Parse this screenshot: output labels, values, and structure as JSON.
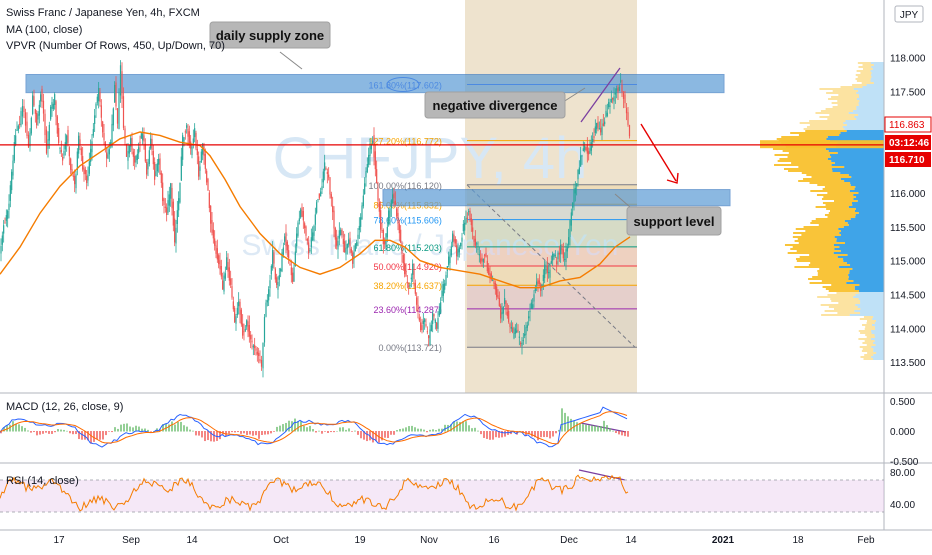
{
  "header": {
    "title": "Swiss Franc / Japanese Yen, 4h, FXCM",
    "indicator_ma": "MA (100, close)",
    "indicator_vpvr": "VPVR (Number Of Rows, 450, Up/Down, 70)",
    "watermark_symbol": "CHFJPY, 4h",
    "watermark_name": "Swiss Franc / Japanese Yen",
    "currency_badge": "JPY"
  },
  "chart_data": [
    {
      "type": "line",
      "name": "price-pane",
      "price_axis": {
        "range": [
          113.0,
          118.2
        ],
        "ticks": [
          "113.000",
          "113.500",
          "114.000",
          "114.500",
          "115.000",
          "115.500",
          "116.000",
          "116.500",
          "117.000",
          "117.500",
          "118.000"
        ]
      },
      "time_axis": {
        "ticks": [
          "17",
          "Sep",
          "14",
          "Oct",
          "19",
          "Nov",
          "16",
          "Dec",
          "14",
          "2021",
          "18",
          "Feb"
        ]
      },
      "price_path": [
        [
          0,
          115.1
        ],
        [
          4,
          115.55
        ],
        [
          8,
          115.7
        ],
        [
          12,
          116.3
        ],
        [
          16,
          116.9
        ],
        [
          20,
          117.05
        ],
        [
          23,
          117.3
        ],
        [
          26,
          117.0
        ],
        [
          29,
          116.7
        ],
        [
          33,
          117.4
        ],
        [
          37,
          117.05
        ],
        [
          41,
          117.5
        ],
        [
          44,
          117.2
        ],
        [
          47,
          116.6
        ],
        [
          51,
          117.25
        ],
        [
          55,
          117.4
        ],
        [
          59,
          116.7
        ],
        [
          63,
          116.5
        ],
        [
          67,
          116.9
        ],
        [
          71,
          116.4
        ],
        [
          75,
          116.1
        ],
        [
          79,
          116.8
        ],
        [
          83,
          116.4
        ],
        [
          87,
          116.2
        ],
        [
          91,
          116.6
        ],
        [
          95,
          117.2
        ],
        [
          99,
          117.5
        ],
        [
          103,
          116.9
        ],
        [
          107,
          116.5
        ],
        [
          111,
          116.7
        ],
        [
          115,
          117.6
        ],
        [
          118,
          117.0
        ],
        [
          121,
          117.85
        ],
        [
          124,
          117.0
        ],
        [
          127,
          116.5
        ],
        [
          131,
          116.8
        ],
        [
          135,
          116.4
        ],
        [
          139,
          116.7
        ],
        [
          143,
          116.9
        ],
        [
          147,
          116.3
        ],
        [
          151,
          116.8
        ],
        [
          155,
          116.2
        ],
        [
          159,
          116.5
        ],
        [
          163,
          115.9
        ],
        [
          167,
          115.7
        ],
        [
          171,
          116.1
        ],
        [
          175,
          115.3
        ],
        [
          179,
          115.9
        ],
        [
          183,
          116.8
        ],
        [
          187,
          117.0
        ],
        [
          191,
          116.6
        ],
        [
          195,
          116.9
        ],
        [
          199,
          116.3
        ],
        [
          203,
          116.7
        ],
        [
          207,
          116.2
        ],
        [
          211,
          115.6
        ],
        [
          215,
          115.2
        ],
        [
          219,
          115.0
        ],
        [
          223,
          114.6
        ],
        [
          227,
          115.0
        ],
        [
          231,
          114.6
        ],
        [
          235,
          114.1
        ],
        [
          239,
          114.4
        ],
        [
          243,
          113.9
        ],
        [
          247,
          114.1
        ],
        [
          251,
          113.8
        ],
        [
          255,
          113.7
        ],
        [
          259,
          113.6
        ],
        [
          262,
          113.4
        ],
        [
          265,
          114.2
        ],
        [
          269,
          114.6
        ],
        [
          273,
          115.1
        ],
        [
          277,
          114.6
        ],
        [
          281,
          114.9
        ],
        [
          285,
          115.4
        ],
        [
          289,
          115.0
        ],
        [
          293,
          114.7
        ],
        [
          297,
          115.4
        ],
        [
          301,
          115.8
        ],
        [
          305,
          115.5
        ],
        [
          309,
          115.1
        ],
        [
          313,
          115.4
        ],
        [
          317,
          115.9
        ],
        [
          321,
          116.0
        ],
        [
          325,
          116.4
        ],
        [
          329,
          116.2
        ],
        [
          333,
          115.7
        ],
        [
          337,
          115.2
        ],
        [
          341,
          115.5
        ],
        [
          345,
          115.1
        ],
        [
          349,
          115.3
        ],
        [
          353,
          115.0
        ],
        [
          357,
          115.3
        ],
        [
          361,
          115.6
        ],
        [
          365,
          116.2
        ],
        [
          369,
          116.6
        ],
        [
          373,
          116.8
        ],
        [
          377,
          116.1
        ],
        [
          381,
          115.5
        ],
        [
          385,
          115.2
        ],
        [
          389,
          115.7
        ],
        [
          393,
          116.0
        ],
        [
          397,
          115.7
        ],
        [
          401,
          115.3
        ],
        [
          405,
          114.8
        ],
        [
          409,
          114.6
        ],
        [
          413,
          114.9
        ],
        [
          417,
          114.3
        ],
        [
          421,
          114.0
        ],
        [
          425,
          114.1
        ],
        [
          429,
          113.8
        ],
        [
          433,
          114.2
        ],
        [
          437,
          114.0
        ],
        [
          441,
          114.4
        ],
        [
          445,
          114.7
        ],
        [
          449,
          115.0
        ],
        [
          453,
          115.4
        ],
        [
          457,
          115.1
        ],
        [
          461,
          115.3
        ],
        [
          465,
          115.6
        ],
        [
          469,
          115.7
        ],
        [
          473,
          115.4
        ],
        [
          477,
          115.2
        ],
        [
          481,
          115.0
        ],
        [
          485,
          115.1
        ],
        [
          489,
          114.8
        ],
        [
          493,
          114.7
        ],
        [
          497,
          114.5
        ],
        [
          501,
          114.2
        ],
        [
          505,
          114.4
        ],
        [
          509,
          114.1
        ],
        [
          513,
          113.9
        ],
        [
          517,
          114.0
        ],
        [
          521,
          113.75
        ],
        [
          525,
          113.9
        ],
        [
          529,
          114.2
        ],
        [
          533,
          114.4
        ],
        [
          537,
          114.7
        ],
        [
          541,
          114.6
        ],
        [
          545,
          114.9
        ],
        [
          549,
          114.8
        ],
        [
          553,
          115.1
        ],
        [
          557,
          115.0
        ],
        [
          561,
          115.2
        ],
        [
          565,
          115.0
        ],
        [
          569,
          115.4
        ],
        [
          573,
          115.9
        ],
        [
          577,
          116.2
        ],
        [
          581,
          116.5
        ],
        [
          585,
          116.7
        ],
        [
          589,
          116.6
        ],
        [
          593,
          116.8
        ],
        [
          597,
          117.0
        ],
        [
          601,
          116.9
        ],
        [
          605,
          117.1
        ],
        [
          609,
          117.3
        ],
        [
          613,
          117.4
        ],
        [
          617,
          117.5
        ],
        [
          621,
          117.65
        ],
        [
          624,
          117.4
        ],
        [
          627,
          117.2
        ],
        [
          630,
          116.86
        ]
      ],
      "ma_path": [
        [
          0,
          114.8
        ],
        [
          20,
          115.2
        ],
        [
          40,
          115.7
        ],
        [
          60,
          116.1
        ],
        [
          80,
          116.4
        ],
        [
          100,
          116.6
        ],
        [
          120,
          116.8
        ],
        [
          140,
          116.9
        ],
        [
          160,
          116.85
        ],
        [
          180,
          116.75
        ],
        [
          200,
          116.7
        ],
        [
          210,
          116.55
        ],
        [
          225,
          116.2
        ],
        [
          240,
          115.8
        ],
        [
          260,
          115.4
        ],
        [
          280,
          115.1
        ],
        [
          300,
          114.9
        ],
        [
          320,
          114.8
        ],
        [
          340,
          114.9
        ],
        [
          360,
          115.1
        ],
        [
          375,
          115.3
        ],
        [
          390,
          115.3
        ],
        [
          405,
          115.2
        ],
        [
          420,
          115.0
        ],
        [
          440,
          114.9
        ],
        [
          460,
          114.85
        ],
        [
          480,
          114.8
        ],
        [
          500,
          114.7
        ],
        [
          520,
          114.6
        ],
        [
          540,
          114.6
        ],
        [
          560,
          114.7
        ],
        [
          580,
          114.75
        ],
        [
          600,
          114.95
        ],
        [
          615,
          115.2
        ],
        [
          630,
          115.35
        ]
      ],
      "annotations": [
        {
          "label": "daily supply zone",
          "kind": "zone",
          "price_range": [
            117.57,
            117.72
          ]
        },
        {
          "label": "support level",
          "kind": "zone",
          "price_range": [
            115.87,
            116.02
          ]
        },
        {
          "label": "negative divergence",
          "kind": "callout"
        }
      ],
      "fibonacci": [
        {
          "ratio": "161.80%",
          "price": "(117.602)",
          "value": 117.602,
          "color": "#2962ff"
        },
        {
          "ratio": "127.20%",
          "price": "(116.772)",
          "value": 116.772,
          "color": "#f7a400"
        },
        {
          "ratio": "100.00%",
          "price": "(116.120)",
          "value": 116.12,
          "color": "#787b86"
        },
        {
          "ratio": "85.00%",
          "price": "(115.832)",
          "value": 115.832,
          "color": "#f7a400"
        },
        {
          "ratio": "78.60%",
          "price": "(115.606)",
          "value": 115.606,
          "color": "#2196f3"
        },
        {
          "ratio": "61.80%",
          "price": "(115.203)",
          "value": 115.203,
          "color": "#089981"
        },
        {
          "ratio": "50.00%",
          "price": "(114.920)",
          "value": 114.92,
          "color": "#f23645"
        },
        {
          "ratio": "38.20%",
          "price": "(114.637)",
          "value": 114.637,
          "color": "#f7a400"
        },
        {
          "ratio": "23.60%",
          "price": "(114.287)",
          "value": 114.287,
          "color": "#9c27b0"
        },
        {
          "ratio": "0.00%",
          "price": "(113.721)",
          "value": 113.721,
          "color": "#787b86"
        }
      ],
      "price_labels": [
        {
          "text": "116.863",
          "value": 116.863,
          "style": "outline"
        },
        {
          "text": "03:12:46",
          "value": 116.78,
          "style": "fill"
        },
        {
          "text": "116.710",
          "value": 116.71,
          "style": "fill"
        }
      ],
      "horizontal_line": 116.71
    },
    {
      "type": "line",
      "name": "macd-pane",
      "title": "MACD (12, 26, close, 9)",
      "y_ticks": [
        "0.500",
        "0.000",
        "-0.500"
      ],
      "range": [
        -0.5,
        0.6
      ]
    },
    {
      "type": "line",
      "name": "rsi-pane",
      "title": "RSI (14, close)",
      "y_ticks": [
        "80.00",
        "40.00"
      ],
      "range": [
        20,
        85
      ],
      "band": [
        30,
        70
      ]
    }
  ],
  "colors": {
    "up": "#26a69a",
    "down": "#ef5350",
    "ma": "#f57c00",
    "zone": "#5b9bd5",
    "red_line": "#e60000",
    "vp_up": "#f9c12e",
    "vp_down": "#2a9ae6"
  }
}
